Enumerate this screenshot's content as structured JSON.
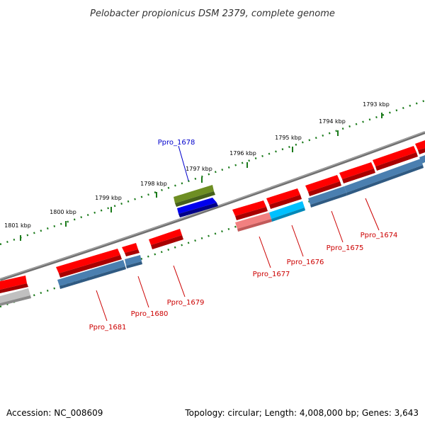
{
  "title": "Pelobacter propionicus DSM 2379, complete genome",
  "footer": {
    "accession": "Accession: NC_008609",
    "summary": "Topology: circular; Length: 4,008,000 bp; Genes: 3,643"
  },
  "kbp_labels": [
    "1801 kbp",
    "1800 kbp",
    "1799 kbp",
    "1798 kbp",
    "1797 kbp",
    "1796 kbp",
    "1795 kbp",
    "1794 kbp",
    "1793 kbp"
  ],
  "genes": [
    {
      "name": "Ppro_1674",
      "color": "#ff0000"
    },
    {
      "name": "Ppro_1675",
      "color": "#ff0000"
    },
    {
      "name": "Ppro_1676",
      "color": "#ff0000"
    },
    {
      "name": "Ppro_1677",
      "color": "#ff0000"
    },
    {
      "name": "Ppro_1678",
      "color": "#0000cc"
    },
    {
      "name": "Ppro_1679",
      "color": "#ff0000"
    },
    {
      "name": "Ppro_1680",
      "color": "#ff0000"
    },
    {
      "name": "Ppro_1681",
      "color": "#ff0000"
    }
  ],
  "colors": {
    "gene_red": "#ff0000",
    "cds_blue": "#4a7fb0",
    "selected_blue": "#0000ee",
    "olive": "#6e8e23",
    "cyan": "#00c0ff",
    "pink": "#f28080",
    "gray": "#c0c0c0",
    "backbone": "#808080",
    "tick_green": "#1a7a1a"
  }
}
